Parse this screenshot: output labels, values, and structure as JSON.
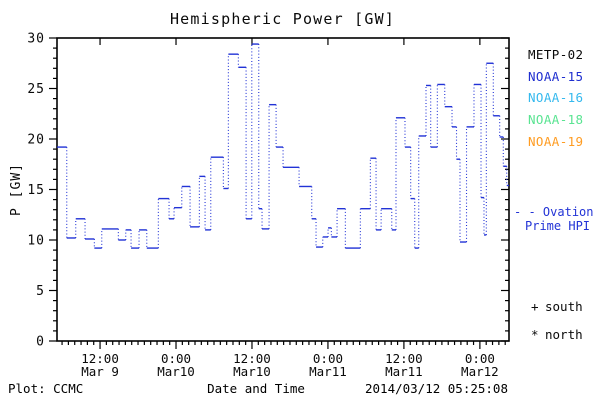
{
  "title": "Hemispheric Power [GW]",
  "footer": {
    "left": "Plot: CCMC",
    "right": "2014/03/12 05:25:08"
  },
  "axes": {
    "ylabel": "P [GW]",
    "xlabel": "Date and Time",
    "ylim": [
      0,
      30
    ],
    "ytick_major": 5,
    "ytick_minor": 1,
    "xlim_hours": [
      5.2,
      76.6
    ],
    "xminor_step_hours": 1,
    "xticks": [
      {
        "t": 12,
        "time": "12:00",
        "date": "Mar 9"
      },
      {
        "t": 24,
        "time": "0:00",
        "date": "Mar10"
      },
      {
        "t": 36,
        "time": "12:00",
        "date": "Mar10"
      },
      {
        "t": 48,
        "time": "0:00",
        "date": "Mar11"
      },
      {
        "t": 60,
        "time": "12:00",
        "date": "Mar11"
      },
      {
        "t": 72,
        "time": "0:00",
        "date": "Mar12"
      }
    ]
  },
  "legend": {
    "satellites": [
      {
        "label": "METP-02",
        "color": "#0a0a0a"
      },
      {
        "label": "NOAA-15",
        "color": "#1f2fd0"
      },
      {
        "label": "NOAA-16",
        "color": "#35b9ee"
      },
      {
        "label": "NOAA-18",
        "color": "#5ae492"
      },
      {
        "label": "NOAA-19",
        "color": "#ff9c22"
      }
    ],
    "model": {
      "sample": "- -",
      "line1": "Ovation",
      "line2": "Prime HPI",
      "color": "#2233d6"
    },
    "markers": [
      {
        "symbol": "+",
        "label": "south"
      },
      {
        "symbol": "*",
        "label": "north"
      }
    ]
  },
  "chart_data": {
    "type": "line",
    "step_mode": "post",
    "line_style": "solid horizontal segments joined by dotted vertical connectors",
    "title": "Hemispheric Power [GW]",
    "xlabel": "Date and Time",
    "ylabel": "P [GW]",
    "ylim": [
      0,
      30
    ],
    "x_unit": "hours since 2014-03-09 00:00",
    "xlim": [
      5.2,
      76.6
    ],
    "xtick_labels": [
      "12:00 Mar 9",
      "0:00 Mar10",
      "12:00 Mar10",
      "0:00 Mar11",
      "12:00 Mar11",
      "0:00 Mar12"
    ],
    "grid": false,
    "legend_position": "right outside",
    "series": [
      {
        "name": "Ovation Prime HPI",
        "color": "#2233d6",
        "t_end": 76.6,
        "steps": [
          [
            5.21,
            19.2
          ],
          [
            6.74,
            10.2
          ],
          [
            8.16,
            12.1
          ],
          [
            9.63,
            10.1
          ],
          [
            11.1,
            9.2
          ],
          [
            12.27,
            11.1
          ],
          [
            14.89,
            10.0
          ],
          [
            16.06,
            11.0
          ],
          [
            16.9,
            9.2
          ],
          [
            18.16,
            11.0
          ],
          [
            19.38,
            9.2
          ],
          [
            21.21,
            14.1
          ],
          [
            22.9,
            12.1
          ],
          [
            23.69,
            13.2
          ],
          [
            24.91,
            15.3
          ],
          [
            26.22,
            11.3
          ],
          [
            27.69,
            16.3
          ],
          [
            28.59,
            11.0
          ],
          [
            29.49,
            18.2
          ],
          [
            31.48,
            15.1
          ],
          [
            32.27,
            28.4
          ],
          [
            33.85,
            27.1
          ],
          [
            35.07,
            12.1
          ],
          [
            35.97,
            29.4
          ],
          [
            37.07,
            13.1
          ],
          [
            37.59,
            11.1
          ],
          [
            38.7,
            23.4
          ],
          [
            39.81,
            19.2
          ],
          [
            40.91,
            17.2
          ],
          [
            43.44,
            15.3
          ],
          [
            45.44,
            12.1
          ],
          [
            46.12,
            9.3
          ],
          [
            47.18,
            10.3
          ],
          [
            48.02,
            11.2
          ],
          [
            48.54,
            10.3
          ],
          [
            49.44,
            13.1
          ],
          [
            50.75,
            9.2
          ],
          [
            53.12,
            13.1
          ],
          [
            54.7,
            18.1
          ],
          [
            55.6,
            11.0
          ],
          [
            56.4,
            13.1
          ],
          [
            58.08,
            11.0
          ],
          [
            58.75,
            22.1
          ],
          [
            60.17,
            19.2
          ],
          [
            61.07,
            14.1
          ],
          [
            61.71,
            9.2
          ],
          [
            62.34,
            20.3
          ],
          [
            63.49,
            25.3
          ],
          [
            64.23,
            19.2
          ],
          [
            65.28,
            25.4
          ],
          [
            66.45,
            23.2
          ],
          [
            67.6,
            21.2
          ],
          [
            68.31,
            18.0
          ],
          [
            68.86,
            9.8
          ],
          [
            69.89,
            21.2
          ],
          [
            71.07,
            25.4
          ],
          [
            72.18,
            14.2
          ],
          [
            72.65,
            10.5
          ],
          [
            73.02,
            27.5
          ],
          [
            74.12,
            22.3
          ],
          [
            75.13,
            20.2
          ],
          [
            75.7,
            17.3
          ],
          [
            76.24,
            15.4
          ]
        ]
      }
    ]
  }
}
